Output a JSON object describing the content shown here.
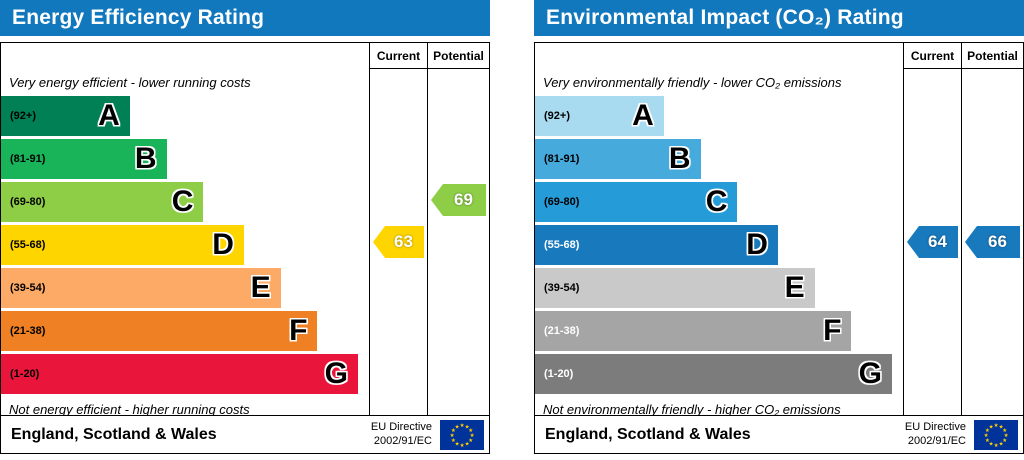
{
  "labels": {
    "current": "Current",
    "potential": "Potential"
  },
  "colors": {
    "header_blue": "#1278be",
    "eu_flag_blue": "#003399",
    "eu_star_yellow": "#ffcc00"
  },
  "left": {
    "title": "Energy Efficiency Rating",
    "top_note": "Very energy efficient - lower running costs",
    "bottom_note": "Not energy efficient - higher running costs",
    "bands": [
      {
        "letter": "A",
        "range": "(92+)",
        "color": "#008054",
        "width": "35%",
        "range_color": "#000000"
      },
      {
        "letter": "B",
        "range": "(81-91)",
        "color": "#19b459",
        "width": "45%",
        "range_color": "#000000"
      },
      {
        "letter": "C",
        "range": "(69-80)",
        "color": "#8dce46",
        "width": "55%",
        "range_color": "#000000"
      },
      {
        "letter": "D",
        "range": "(55-68)",
        "color": "#ffd500",
        "width": "66%",
        "range_color": "#000000"
      },
      {
        "letter": "E",
        "range": "(39-54)",
        "color": "#fcaa65",
        "width": "76%",
        "range_color": "#000000"
      },
      {
        "letter": "F",
        "range": "(21-38)",
        "color": "#ef8023",
        "width": "86%",
        "range_color": "#000000"
      },
      {
        "letter": "G",
        "range": "(1-20)",
        "color": "#e9153b",
        "width": "97%",
        "range_color": "#000000"
      }
    ],
    "current": {
      "value": "63",
      "band": "D",
      "color": "#ffd500"
    },
    "potential": {
      "value": "69",
      "band": "C",
      "color": "#8dce46"
    }
  },
  "right": {
    "title": "Environmental Impact (CO₂) Rating",
    "top_note": "Very environmentally friendly - lower CO₂ emissions",
    "bottom_note": "Not environmentally friendly - higher CO₂ emissions",
    "bands": [
      {
        "letter": "A",
        "range": "(92+)",
        "color": "#a8dbf0",
        "width": "35%",
        "range_color": "#000000"
      },
      {
        "letter": "B",
        "range": "(81-91)",
        "color": "#46aadc",
        "width": "45%",
        "range_color": "#000000"
      },
      {
        "letter": "C",
        "range": "(69-80)",
        "color": "#259bd8",
        "width": "55%",
        "range_color": "#000000"
      },
      {
        "letter": "D",
        "range": "(55-68)",
        "color": "#1879bd",
        "width": "66%",
        "range_color": "#ffffff"
      },
      {
        "letter": "E",
        "range": "(39-54)",
        "color": "#c9c9c9",
        "width": "76%",
        "range_color": "#000000"
      },
      {
        "letter": "F",
        "range": "(21-38)",
        "color": "#a5a5a5",
        "width": "86%",
        "range_color": "#ffffff"
      },
      {
        "letter": "G",
        "range": "(1-20)",
        "color": "#7c7c7c",
        "width": "97%",
        "range_color": "#ffffff"
      }
    ],
    "current": {
      "value": "64",
      "band": "D",
      "color": "#1879bd"
    },
    "potential": {
      "value": "66",
      "band": "D",
      "color": "#1879bd"
    }
  },
  "footer": {
    "region": "England, Scotland & Wales",
    "directive_line1": "EU Directive",
    "directive_line2": "2002/91/EC"
  },
  "chart_data": [
    {
      "type": "bar",
      "title": "Energy Efficiency Rating",
      "categories": [
        "A (92+)",
        "B (81-91)",
        "C (69-80)",
        "D (55-68)",
        "E (39-54)",
        "F (21-38)",
        "G (1-20)"
      ],
      "series": [
        {
          "name": "Current",
          "values": [
            63
          ],
          "band": "D"
        },
        {
          "name": "Potential",
          "values": [
            69
          ],
          "band": "C"
        }
      ],
      "annotations": [
        "Very energy efficient - lower running costs",
        "Not energy efficient - higher running costs",
        "England, Scotland & Wales",
        "EU Directive 2002/91/EC"
      ]
    },
    {
      "type": "bar",
      "title": "Environmental Impact (CO₂) Rating",
      "categories": [
        "A (92+)",
        "B (81-91)",
        "C (69-80)",
        "D (55-68)",
        "E (39-54)",
        "F (21-38)",
        "G (1-20)"
      ],
      "series": [
        {
          "name": "Current",
          "values": [
            64
          ],
          "band": "D"
        },
        {
          "name": "Potential",
          "values": [
            66
          ],
          "band": "D"
        }
      ],
      "annotations": [
        "Very environmentally friendly - lower CO₂ emissions",
        "Not environmentally friendly - higher CO₂ emissions",
        "England, Scotland & Wales",
        "EU Directive 2002/91/EC"
      ]
    }
  ]
}
